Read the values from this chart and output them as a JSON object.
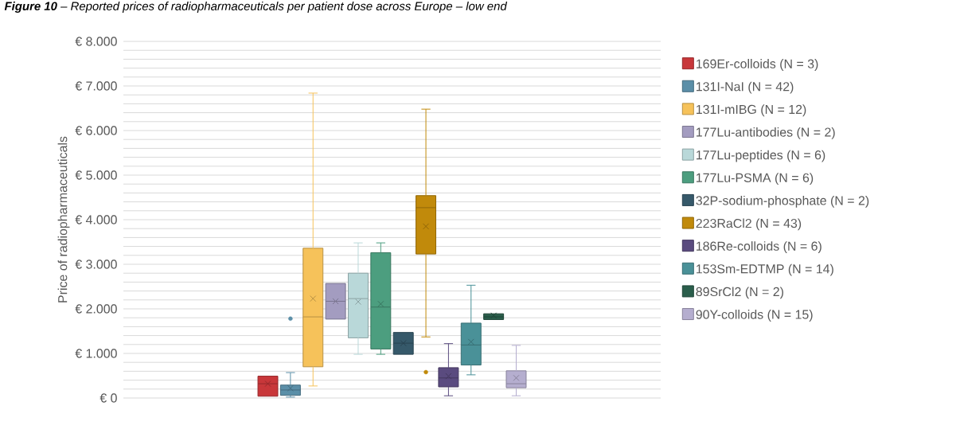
{
  "chart_data": {
    "type": "box",
    "title": "**Figure 10** – Reported prices of radiopharmaceuticals per patient dose across Europe – low end",
    "ylabel": "Price of radiopharmaceuticals",
    "categories": [
      null
    ],
    "series": [
      {
        "name": "169Er-colloids (N = 3)",
        "color": "#c8373a",
        "boxes": [
          {
            "low": 40,
            "q1": 40,
            "median": 320,
            "q3": 490,
            "high": 490,
            "mean": 320
          }
        ]
      },
      {
        "name": "131I-NaI (N = 42)",
        "color": "#5b8fa8",
        "boxes": [
          {
            "low": 20,
            "q1": 60,
            "median": 180,
            "q3": 290,
            "high": 570,
            "mean": 220,
            "outliers": [
              1780
            ]
          }
        ]
      },
      {
        "name": "131I-mIBG (N = 12)",
        "color": "#f6c25a",
        "boxes": [
          {
            "low": 270,
            "q1": 700,
            "median": 1820,
            "q3": 3360,
            "high": 6840,
            "mean": 2230
          }
        ]
      },
      {
        "name": "177Lu-antibodies (N = 2)",
        "color": "#a39cc0",
        "boxes": [
          {
            "low": 1770,
            "q1": 1770,
            "median": 2170,
            "q3": 2570,
            "high": 2570,
            "mean": 2170
          }
        ]
      },
      {
        "name": "177Lu-peptides (N = 6)",
        "color": "#b9d8d9",
        "boxes": [
          {
            "low": 980,
            "q1": 1350,
            "median": 2230,
            "q3": 2800,
            "high": 3480,
            "mean": 2160
          }
        ]
      },
      {
        "name": "177Lu-PSMA (N = 6)",
        "color": "#4c9e7f",
        "boxes": [
          {
            "low": 980,
            "q1": 1100,
            "median": 2040,
            "q3": 3260,
            "high": 3480,
            "mean": 2110
          }
        ]
      },
      {
        "name": "32P-sodium-phosphate (N = 2)",
        "color": "#36596a",
        "boxes": [
          {
            "low": 980,
            "q1": 980,
            "median": 1230,
            "q3": 1470,
            "high": 1470,
            "mean": 1230
          }
        ]
      },
      {
        "name": "223RaCl2 (N = 43)",
        "color": "#c18a0b",
        "boxes": [
          {
            "low": 1370,
            "q1": 3230,
            "median": 4270,
            "q3": 4540,
            "high": 6480,
            "mean": 3850,
            "outliers": [
              580
            ]
          }
        ]
      },
      {
        "name": "186Re-colloids (N = 6)",
        "color": "#5a4b7f",
        "boxes": [
          {
            "low": 50,
            "q1": 250,
            "median": 450,
            "q3": 680,
            "high": 1220,
            "mean": 490
          }
        ]
      },
      {
        "name": "153Sm-EDTMP (N = 14)",
        "color": "#4a9198",
        "boxes": [
          {
            "low": 520,
            "q1": 740,
            "median": 1190,
            "q3": 1680,
            "high": 2530,
            "mean": 1260
          }
        ]
      },
      {
        "name": "89SrCl2 (N = 2)",
        "color": "#2a5e4b",
        "boxes": [
          {
            "low": 1760,
            "q1": 1760,
            "median": 1820,
            "q3": 1890,
            "high": 1890,
            "mean": 1850
          }
        ]
      },
      {
        "name": "90Y-colloids (N = 15)",
        "color": "#b5aecf",
        "boxes": [
          {
            "low": 50,
            "q1": 230,
            "median": 320,
            "q3": 610,
            "high": 1180,
            "mean": 450
          }
        ]
      }
    ],
    "ylim": [
      0,
      8000
    ],
    "yticks": [
      {
        "value": 0,
        "label": "€ 0"
      },
      {
        "value": 200,
        "label": null
      },
      {
        "value": 400,
        "label": null
      },
      {
        "value": 600,
        "label": null
      },
      {
        "value": 800,
        "label": null
      },
      {
        "value": 1000,
        "label": "€ 1.000"
      },
      {
        "value": 1200,
        "label": null
      },
      {
        "value": 1400,
        "label": null
      },
      {
        "value": 1600,
        "label": null
      },
      {
        "value": 1800,
        "label": null
      },
      {
        "value": 2000,
        "label": "€ 2.000"
      },
      {
        "value": 2200,
        "label": null
      },
      {
        "value": 2400,
        "label": null
      },
      {
        "value": 2600,
        "label": null
      },
      {
        "value": 2800,
        "label": null
      },
      {
        "value": 3000,
        "label": "€ 3.000"
      },
      {
        "value": 3200,
        "label": null
      },
      {
        "value": 3400,
        "label": null
      },
      {
        "value": 3600,
        "label": null
      },
      {
        "value": 3800,
        "label": null
      },
      {
        "value": 4000,
        "label": "€ 4.000"
      },
      {
        "value": 4200,
        "label": null
      },
      {
        "value": 4400,
        "label": null
      },
      {
        "value": 4600,
        "label": null
      },
      {
        "value": 4800,
        "label": null
      },
      {
        "value": 5000,
        "label": "€ 5.000"
      },
      {
        "value": 5200,
        "label": null
      },
      {
        "value": 5400,
        "label": null
      },
      {
        "value": 5600,
        "label": null
      },
      {
        "value": 5800,
        "label": null
      },
      {
        "value": 6000,
        "label": "€ 6.000"
      },
      {
        "value": 6200,
        "label": null
      },
      {
        "value": 6400,
        "label": null
      },
      {
        "value": 6600,
        "label": null
      },
      {
        "value": 6800,
        "label": null
      },
      {
        "value": 7000,
        "label": "€ 7.000"
      },
      {
        "value": 7200,
        "label": null
      },
      {
        "value": 7400,
        "label": null
      },
      {
        "value": 7600,
        "label": null
      },
      {
        "value": 7800,
        "label": null
      },
      {
        "value": 8000,
        "label": "€ 8.000"
      }
    ],
    "grid": "y",
    "legend": "right"
  }
}
